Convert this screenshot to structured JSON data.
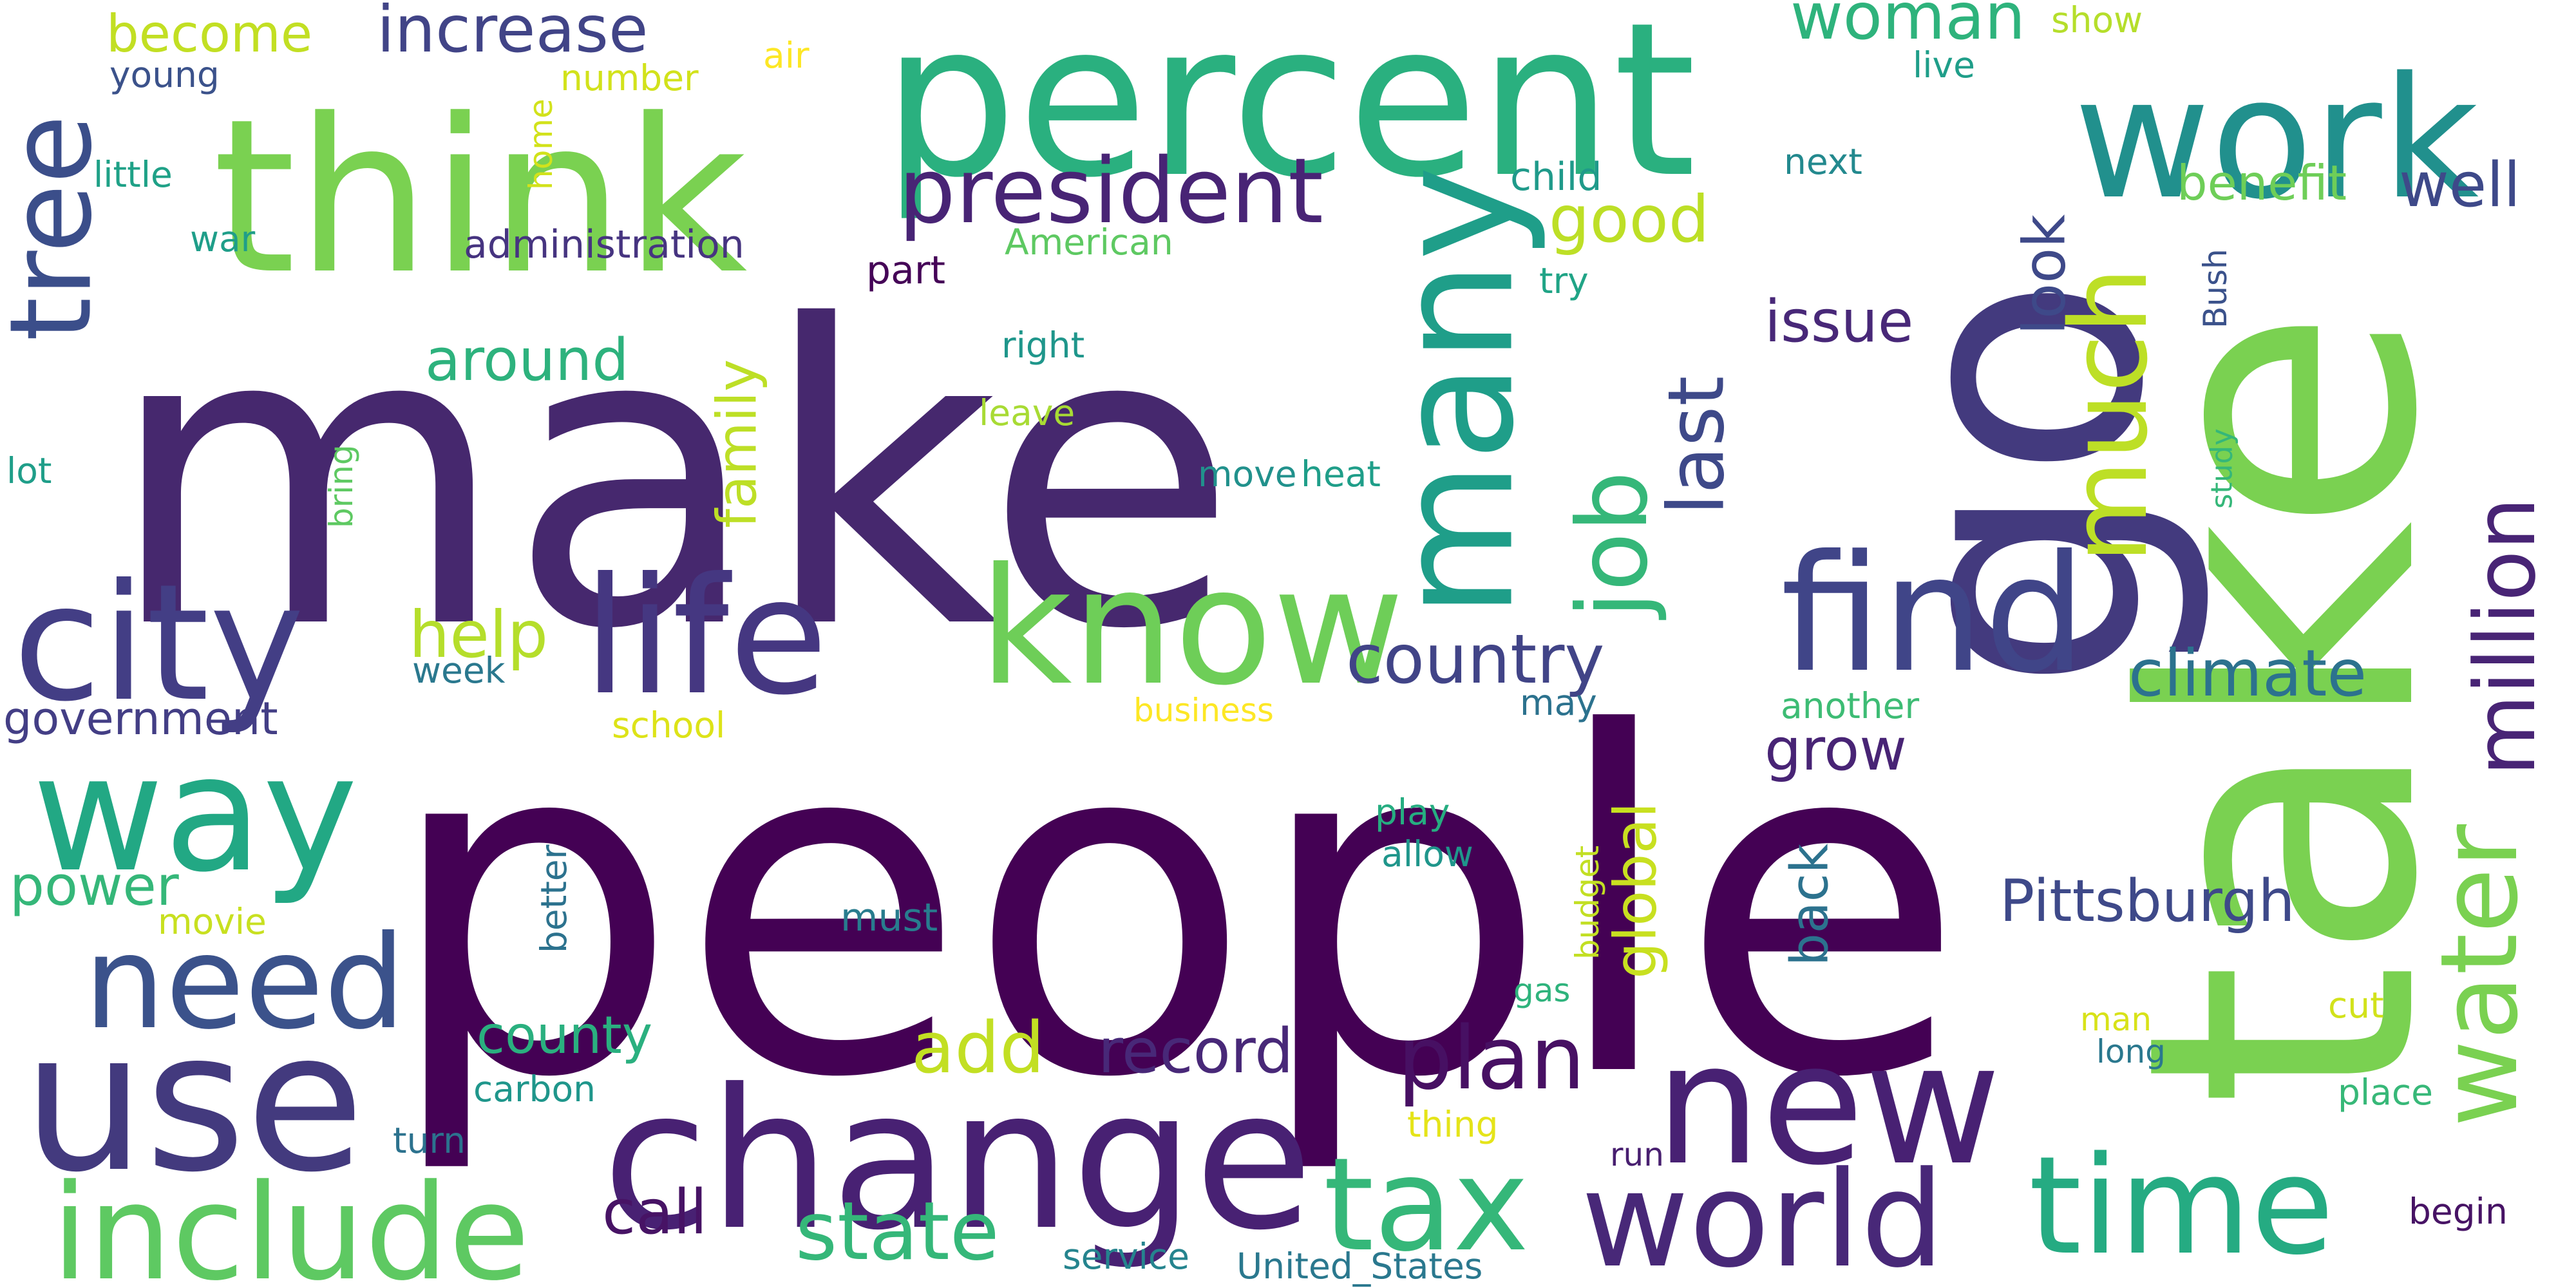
{
  "word_cloud": {
    "words": [
      {
        "text": "people",
        "color": "#440154",
        "vertical": false
      },
      {
        "text": "make",
        "color": "#46286e",
        "vertical": false
      },
      {
        "text": "take",
        "color": "#7ad151",
        "vertical": true
      },
      {
        "text": "go",
        "color": "#433a7e",
        "vertical": true
      },
      {
        "text": "think",
        "color": "#7ad151",
        "vertical": false
      },
      {
        "text": "percent",
        "color": "#2ab07f",
        "vertical": false
      },
      {
        "text": "work",
        "color": "#21908d",
        "vertical": false
      },
      {
        "text": "change",
        "color": "#482173",
        "vertical": false
      },
      {
        "text": "use",
        "color": "#433a7e",
        "vertical": false
      },
      {
        "text": "life",
        "color": "#453781",
        "vertical": false
      },
      {
        "text": "know",
        "color": "#6ece58",
        "vertical": false
      },
      {
        "text": "city",
        "color": "#433e85",
        "vertical": false
      },
      {
        "text": "many",
        "color": "#1f9e89",
        "vertical": true
      },
      {
        "text": "new",
        "color": "#482173",
        "vertical": false
      },
      {
        "text": "way",
        "color": "#22a884",
        "vertical": false
      },
      {
        "text": "find",
        "color": "#404588",
        "vertical": false
      },
      {
        "text": "world",
        "color": "#482878",
        "vertical": false
      },
      {
        "text": "time",
        "color": "#25ab82",
        "vertical": false
      },
      {
        "text": "tax",
        "color": "#35b779",
        "vertical": false
      },
      {
        "text": "include",
        "color": "#5ec962",
        "vertical": false
      },
      {
        "text": "need",
        "color": "#3b528b",
        "vertical": false
      },
      {
        "text": "tree",
        "color": "#3b4e8a",
        "vertical": true
      },
      {
        "text": "president",
        "color": "#482475",
        "vertical": false
      },
      {
        "text": "much",
        "color": "#bddf26",
        "vertical": true
      },
      {
        "text": "water",
        "color": "#7ad151",
        "vertical": true
      },
      {
        "text": "job",
        "color": "#35b779",
        "vertical": true
      },
      {
        "text": "million",
        "color": "#482475",
        "vertical": true
      },
      {
        "text": "plan",
        "color": "#471063",
        "vertical": false
      },
      {
        "text": "state",
        "color": "#35b779",
        "vertical": false
      },
      {
        "text": "last",
        "color": "#3e4989",
        "vertical": true
      },
      {
        "text": "climate",
        "color": "#2c728e",
        "vertical": false
      },
      {
        "text": "country",
        "color": "#414487",
        "vertical": false
      },
      {
        "text": "woman",
        "color": "#2eb37c",
        "vertical": false
      },
      {
        "text": "increase",
        "color": "#414487",
        "vertical": false
      },
      {
        "text": "good",
        "color": "#bddf26",
        "vertical": false
      },
      {
        "text": "look",
        "color": "#3e4989",
        "vertical": true
      },
      {
        "text": "record",
        "color": "#482878",
        "vertical": false
      },
      {
        "text": "Pittsburgh",
        "color": "#3e4989",
        "vertical": false
      },
      {
        "text": "call",
        "color": "#471365",
        "vertical": false
      },
      {
        "text": "add",
        "color": "#c2df23",
        "vertical": false
      },
      {
        "text": "family",
        "color": "#bddf26",
        "vertical": true
      },
      {
        "text": "global",
        "color": "#c8e020",
        "vertical": true
      },
      {
        "text": "help",
        "color": "#b5de2b",
        "vertical": false
      },
      {
        "text": "around",
        "color": "#2db27d",
        "vertical": false
      },
      {
        "text": "benefit",
        "color": "#6ece58",
        "vertical": false
      },
      {
        "text": "well",
        "color": "#3e4989",
        "vertical": false
      },
      {
        "text": "become",
        "color": "#c2df23",
        "vertical": false
      },
      {
        "text": "government",
        "color": "#433e85",
        "vertical": false
      },
      {
        "text": "issue",
        "color": "#482878",
        "vertical": false
      },
      {
        "text": "grow",
        "color": "#482475",
        "vertical": false
      },
      {
        "text": "back",
        "color": "#2c728e",
        "vertical": true
      },
      {
        "text": "county",
        "color": "#2ab07f",
        "vertical": false
      },
      {
        "text": "power",
        "color": "#35b779",
        "vertical": false
      },
      {
        "text": "administration",
        "color": "#463480",
        "vertical": false
      },
      {
        "text": "child",
        "color": "#1f9a8a",
        "vertical": false
      },
      {
        "text": "young",
        "color": "#3b528b",
        "vertical": false
      },
      {
        "text": "number",
        "color": "#d2e21b",
        "vertical": false
      },
      {
        "text": "air",
        "color": "#fde725",
        "vertical": false
      },
      {
        "text": "home",
        "color": "#d2e21b",
        "vertical": true
      },
      {
        "text": "little",
        "color": "#1fa187",
        "vertical": false
      },
      {
        "text": "war",
        "color": "#1f9e89",
        "vertical": false
      },
      {
        "text": "American",
        "color": "#5ec962",
        "vertical": false
      },
      {
        "text": "part",
        "color": "#450457",
        "vertical": false
      },
      {
        "text": "try",
        "color": "#20a486",
        "vertical": false
      },
      {
        "text": "next",
        "color": "#23898e",
        "vertical": false
      },
      {
        "text": "live",
        "color": "#1f9e89",
        "vertical": false
      },
      {
        "text": "show",
        "color": "#b5de2b",
        "vertical": false
      },
      {
        "text": "Bush",
        "color": "#3b528b",
        "vertical": true
      },
      {
        "text": "right",
        "color": "#1f968b",
        "vertical": false
      },
      {
        "text": "leave",
        "color": "#a8db34",
        "vertical": false
      },
      {
        "text": "lot",
        "color": "#1f9e89",
        "vertical": false
      },
      {
        "text": "bring",
        "color": "#5ec962",
        "vertical": true
      },
      {
        "text": "move",
        "color": "#21918c",
        "vertical": false
      },
      {
        "text": "heat",
        "color": "#1f9e89",
        "vertical": false
      },
      {
        "text": "study",
        "color": "#35b779",
        "vertical": true
      },
      {
        "text": "week",
        "color": "#2a788e",
        "vertical": false
      },
      {
        "text": "school",
        "color": "#dde318",
        "vertical": false
      },
      {
        "text": "business",
        "color": "#fde725",
        "vertical": false
      },
      {
        "text": "may",
        "color": "#2c728e",
        "vertical": false
      },
      {
        "text": "another",
        "color": "#3dbc74",
        "vertical": false
      },
      {
        "text": "play",
        "color": "#26ad81",
        "vertical": false
      },
      {
        "text": "allow",
        "color": "#1f968b",
        "vertical": false
      },
      {
        "text": "better",
        "color": "#2c728e",
        "vertical": true
      },
      {
        "text": "movie",
        "color": "#c8e020",
        "vertical": false
      },
      {
        "text": "must",
        "color": "#287c8e",
        "vertical": false
      },
      {
        "text": "budget",
        "color": "#c2df23",
        "vertical": true
      },
      {
        "text": "gas",
        "color": "#2eb37c",
        "vertical": false
      },
      {
        "text": "man",
        "color": "#d8e219",
        "vertical": false
      },
      {
        "text": "cut",
        "color": "#d2e21b",
        "vertical": false
      },
      {
        "text": "long",
        "color": "#2a788e",
        "vertical": false
      },
      {
        "text": "place",
        "color": "#37b878",
        "vertical": false
      },
      {
        "text": "carbon",
        "color": "#1f968b",
        "vertical": false
      },
      {
        "text": "turn",
        "color": "#2c728e",
        "vertical": false
      },
      {
        "text": "thing",
        "color": "#e5e419",
        "vertical": false
      },
      {
        "text": "run",
        "color": "#481f70",
        "vertical": false
      },
      {
        "text": "begin",
        "color": "#471365",
        "vertical": false
      },
      {
        "text": "service",
        "color": "#25848e",
        "vertical": false
      },
      {
        "text": "United_States",
        "color": "#2a788e",
        "vertical": false
      }
    ]
  }
}
